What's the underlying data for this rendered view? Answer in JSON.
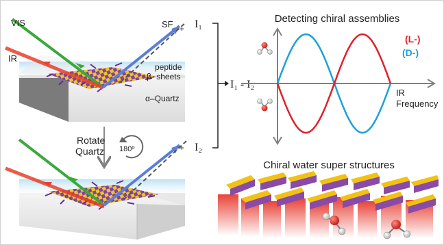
{
  "labels": {
    "vis": "VIS",
    "ir": "IR",
    "sf": "SF",
    "peptide": "peptide",
    "beta_sheets": "β- sheets",
    "quartz": "α–Quartz",
    "rotate": "Rotate",
    "quartz2": "Quartz",
    "angle": "180º",
    "i1": "I₁",
    "i2": "I₂",
    "difference": "I₁ - I₂"
  },
  "chart_data": {
    "type": "line",
    "title": "Detecting chiral assemblies",
    "xlabel": "IR Frequency",
    "xlabel_lines": [
      "IR",
      "Frequency"
    ],
    "ylabel": "",
    "series": [
      {
        "name": "(L-)",
        "color": "#e0202a",
        "shape": "negative lobe then positive lobe"
      },
      {
        "name": "(D-)",
        "color": "#1ba0dc",
        "shape": "positive lobe then negative lobe"
      }
    ]
  },
  "bottom_title": "Chiral water super structures",
  "colors": {
    "vis_beam": "#3aa83a",
    "ir_beam": "#e8402a",
    "sf_beam": "#5a7fd8",
    "sheet_purple": "#7a3a9a",
    "sheet_yellow": "#f0c020",
    "axis": "#808080"
  }
}
